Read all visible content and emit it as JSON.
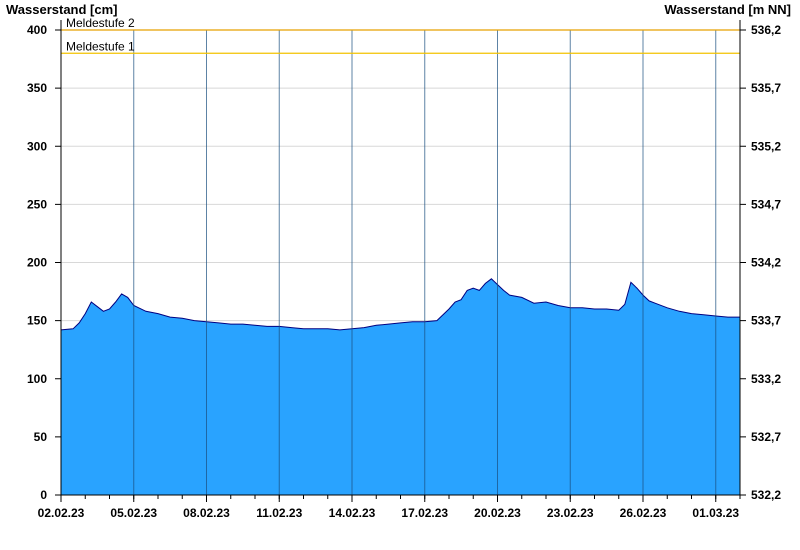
{
  "chart_data": {
    "type": "area",
    "title": "",
    "ylabel_left": "Wasserstand [cm]",
    "ylabel_right": "Wasserstand [m NN]",
    "ylim": [
      0,
      400
    ],
    "y_ticks": [
      0,
      50,
      100,
      150,
      200,
      250,
      300,
      350,
      400
    ],
    "y2_ticks": [
      "532,2",
      "532,7",
      "533,2",
      "533,7",
      "534,2",
      "534,7",
      "535,2",
      "535,7",
      "536,2"
    ],
    "xlim": [
      "2023-02-02",
      "2023-03-02"
    ],
    "x_tick_labels": [
      "02.02.23",
      "05.02.23",
      "08.02.23",
      "11.02.23",
      "14.02.23",
      "17.02.23",
      "20.02.23",
      "23.02.23",
      "26.02.23",
      "01.03.23"
    ],
    "x_tick_dates": [
      "2023-02-02",
      "2023-02-05",
      "2023-02-08",
      "2023-02-11",
      "2023-02-14",
      "2023-02-17",
      "2023-02-20",
      "2023-02-23",
      "2023-02-26",
      "2023-03-01"
    ],
    "grid": true,
    "area_color": "#29a3ff",
    "line_color": "#000080",
    "thresholds": [
      {
        "label": "Meldestufe 2",
        "value": 400,
        "color": "#e6a000"
      },
      {
        "label": "Meldestufe 1",
        "value": 380,
        "color": "#f2c200"
      }
    ],
    "series": [
      {
        "x": [
          "2023-02-02 00:00",
          "2023-02-02 12:00",
          "2023-02-02 18:00",
          "2023-02-03 00:00",
          "2023-02-03 06:00",
          "2023-02-03 12:00",
          "2023-02-03 18:00",
          "2023-02-04 00:00",
          "2023-02-04 06:00",
          "2023-02-04 12:00",
          "2023-02-04 18:00",
          "2023-02-05 00:00",
          "2023-02-05 12:00",
          "2023-02-06 00:00",
          "2023-02-06 12:00",
          "2023-02-07 00:00",
          "2023-02-07 12:00",
          "2023-02-08 00:00",
          "2023-02-08 12:00",
          "2023-02-09 00:00",
          "2023-02-09 12:00",
          "2023-02-10 00:00",
          "2023-02-10 12:00",
          "2023-02-11 00:00",
          "2023-02-11 12:00",
          "2023-02-12 00:00",
          "2023-02-12 12:00",
          "2023-02-13 00:00",
          "2023-02-13 12:00",
          "2023-02-14 00:00",
          "2023-02-14 12:00",
          "2023-02-15 00:00",
          "2023-02-15 12:00",
          "2023-02-16 00:00",
          "2023-02-16 12:00",
          "2023-02-17 00:00",
          "2023-02-17 12:00",
          "2023-02-18 00:00",
          "2023-02-18 06:00",
          "2023-02-18 12:00",
          "2023-02-18 18:00",
          "2023-02-19 00:00",
          "2023-02-19 06:00",
          "2023-02-19 12:00",
          "2023-02-19 18:00",
          "2023-02-20 00:00",
          "2023-02-20 06:00",
          "2023-02-20 12:00",
          "2023-02-21 00:00",
          "2023-02-21 12:00",
          "2023-02-22 00:00",
          "2023-02-22 12:00",
          "2023-02-23 00:00",
          "2023-02-23 12:00",
          "2023-02-24 00:00",
          "2023-02-24 12:00",
          "2023-02-25 00:00",
          "2023-02-25 06:00",
          "2023-02-25 12:00",
          "2023-02-25 18:00",
          "2023-02-26 00:00",
          "2023-02-26 06:00",
          "2023-02-26 12:00",
          "2023-02-27 00:00",
          "2023-02-27 12:00",
          "2023-02-28 00:00",
          "2023-02-28 12:00",
          "2023-03-01 00:00",
          "2023-03-01 12:00",
          "2023-03-02 00:00"
        ],
        "y": [
          142,
          143,
          148,
          156,
          166,
          162,
          158,
          160,
          166,
          173,
          170,
          163,
          158,
          156,
          153,
          152,
          150,
          149,
          148,
          147,
          147,
          146,
          145,
          145,
          144,
          143,
          143,
          143,
          142,
          143,
          144,
          146,
          147,
          148,
          149,
          149,
          150,
          160,
          166,
          168,
          176,
          178,
          176,
          182,
          186,
          181,
          176,
          172,
          170,
          165,
          166,
          163,
          161,
          161,
          160,
          160,
          159,
          164,
          183,
          178,
          172,
          167,
          165,
          161,
          158,
          156,
          155,
          154,
          153,
          153
        ]
      }
    ]
  }
}
